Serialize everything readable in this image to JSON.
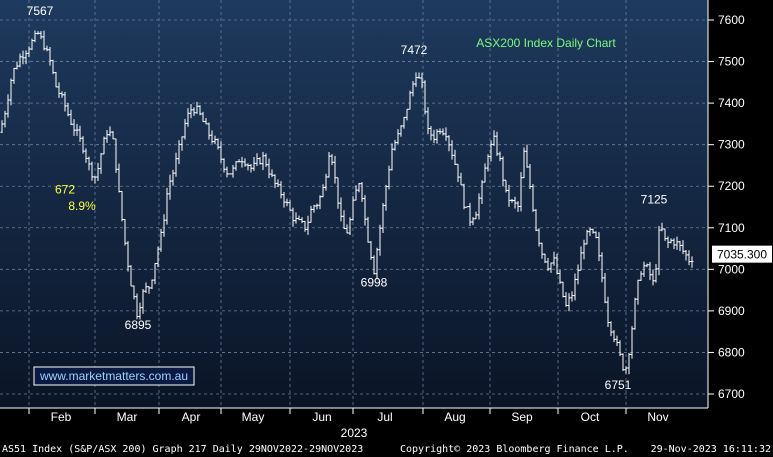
{
  "chart_data": {
    "type": "ohlc",
    "title": "ASX200 Index Daily Chart",
    "y_ticks": [
      7600,
      7500,
      7400,
      7300,
      7200,
      7100,
      7000,
      6900,
      6800,
      6700
    ],
    "ylim": [
      6670,
      7650
    ],
    "x_ticks": [
      "Feb",
      "Mar",
      "Apr",
      "May",
      "Jun",
      "Jul",
      "Aug",
      "Sep",
      "Oct",
      "Nov"
    ],
    "x_year": "2023",
    "last_value": "7035.300",
    "watermark": "www.marketmatters.com.au",
    "annotations": [
      {
        "text": "7567",
        "x": 40,
        "y": 7612,
        "color": "white"
      },
      {
        "text": "7472",
        "x": 414,
        "y": 7518,
        "color": "white"
      },
      {
        "text": "672",
        "x": 65,
        "y": 7182,
        "color": "yellow"
      },
      {
        "text": "8.9%",
        "x": 82,
        "y": 7143,
        "color": "yellow"
      },
      {
        "text": "6895",
        "x": 138,
        "y": 6856,
        "color": "white"
      },
      {
        "text": "6998",
        "x": 374,
        "y": 6959,
        "color": "white"
      },
      {
        "text": "7125",
        "x": 654,
        "y": 7158,
        "color": "white"
      },
      {
        "text": "6751",
        "x": 618,
        "y": 6712,
        "color": "white"
      }
    ],
    "series_keypoints": [
      [
        0,
        7330
      ],
      [
        6,
        7390
      ],
      [
        12,
        7470
      ],
      [
        20,
        7510
      ],
      [
        30,
        7540
      ],
      [
        38,
        7567
      ],
      [
        44,
        7540
      ],
      [
        50,
        7500
      ],
      [
        56,
        7440
      ],
      [
        64,
        7400
      ],
      [
        70,
        7360
      ],
      [
        78,
        7320
      ],
      [
        84,
        7290
      ],
      [
        90,
        7240
      ],
      [
        96,
        7220
      ],
      [
        102,
        7290
      ],
      [
        108,
        7340
      ],
      [
        114,
        7300
      ],
      [
        118,
        7200
      ],
      [
        124,
        7080
      ],
      [
        130,
        6980
      ],
      [
        137,
        6895
      ],
      [
        144,
        6950
      ],
      [
        150,
        6960
      ],
      [
        156,
        7030
      ],
      [
        162,
        7090
      ],
      [
        168,
        7200
      ],
      [
        174,
        7240
      ],
      [
        180,
        7300
      ],
      [
        186,
        7360
      ],
      [
        192,
        7390
      ],
      [
        198,
        7380
      ],
      [
        204,
        7350
      ],
      [
        210,
        7320
      ],
      [
        216,
        7300
      ],
      [
        222,
        7260
      ],
      [
        228,
        7230
      ],
      [
        234,
        7240
      ],
      [
        240,
        7270
      ],
      [
        246,
        7260
      ],
      [
        252,
        7240
      ],
      [
        258,
        7260
      ],
      [
        264,
        7270
      ],
      [
        270,
        7230
      ],
      [
        276,
        7200
      ],
      [
        282,
        7180
      ],
      [
        288,
        7150
      ],
      [
        294,
        7120
      ],
      [
        300,
        7110
      ],
      [
        306,
        7100
      ],
      [
        312,
        7150
      ],
      [
        318,
        7160
      ],
      [
        324,
        7200
      ],
      [
        330,
        7300
      ],
      [
        336,
        7200
      ],
      [
        342,
        7100
      ],
      [
        348,
        7090
      ],
      [
        354,
        7170
      ],
      [
        360,
        7220
      ],
      [
        366,
        7100
      ],
      [
        374,
        6998
      ],
      [
        380,
        7100
      ],
      [
        386,
        7200
      ],
      [
        392,
        7290
      ],
      [
        398,
        7320
      ],
      [
        404,
        7360
      ],
      [
        410,
        7420
      ],
      [
        416,
        7472
      ],
      [
        422,
        7440
      ],
      [
        428,
        7330
      ],
      [
        434,
        7320
      ],
      [
        440,
        7340
      ],
      [
        446,
        7330
      ],
      [
        452,
        7280
      ],
      [
        458,
        7230
      ],
      [
        464,
        7160
      ],
      [
        470,
        7120
      ],
      [
        476,
        7140
      ],
      [
        482,
        7200
      ],
      [
        488,
        7280
      ],
      [
        494,
        7310
      ],
      [
        500,
        7260
      ],
      [
        506,
        7180
      ],
      [
        512,
        7160
      ],
      [
        518,
        7150
      ],
      [
        524,
        7280
      ],
      [
        530,
        7200
      ],
      [
        536,
        7100
      ],
      [
        542,
        7040
      ],
      [
        548,
        7010
      ],
      [
        554,
        7020
      ],
      [
        560,
        6960
      ],
      [
        566,
        6910
      ],
      [
        572,
        6940
      ],
      [
        578,
        7000
      ],
      [
        584,
        7070
      ],
      [
        590,
        7090
      ],
      [
        596,
        7070
      ],
      [
        602,
        6980
      ],
      [
        608,
        6880
      ],
      [
        614,
        6840
      ],
      [
        620,
        6790
      ],
      [
        625,
        6751
      ],
      [
        630,
        6820
      ],
      [
        636,
        6940
      ],
      [
        642,
        7010
      ],
      [
        648,
        7000
      ],
      [
        654,
        6960
      ],
      [
        660,
        7110
      ],
      [
        666,
        7060
      ],
      [
        672,
        7070
      ],
      [
        678,
        7060
      ],
      [
        684,
        7040
      ],
      [
        690,
        7020
      ],
      [
        694,
        7035
      ]
    ]
  },
  "footer": {
    "left": "AS51 Index (S&P/ASX 200) Graph 217  Daily 29NOV2022-29NOV2023",
    "center": "Copyright© 2023 Bloomberg Finance L.P.",
    "right": "29-Nov-2023 16:11:32"
  }
}
